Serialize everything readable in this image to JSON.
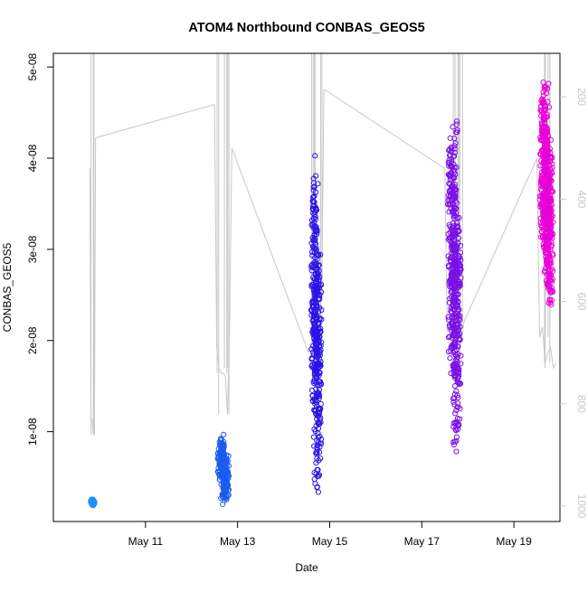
{
  "chart_data": {
    "type": "scatter",
    "title": "ATOM4 Northbound CONBAS_GEOS5",
    "xlabel": "Date",
    "ylabel": "CONBAS_GEOS5",
    "x_unit": "date",
    "xlim": [
      "2016-05-09T00:00",
      "2016-05-20T00:00"
    ],
    "ylim": [
      1.5e-10,
      5.15e-08
    ],
    "x_ticks": [
      {
        "date": "2016-05-11",
        "label": "May 11"
      },
      {
        "date": "2016-05-13",
        "label": "May 13"
      },
      {
        "date": "2016-05-15",
        "label": "May 15"
      },
      {
        "date": "2016-05-17",
        "label": "May 17"
      },
      {
        "date": "2016-05-19",
        "label": "May 19"
      }
    ],
    "y_ticks": [
      {
        "value": 1e-08,
        "label": "1e-08"
      },
      {
        "value": 2e-08,
        "label": "2e-08"
      },
      {
        "value": 3e-08,
        "label": "3e-08"
      },
      {
        "value": 4e-08,
        "label": "4e-08"
      },
      {
        "value": 5e-08,
        "label": "5e-08"
      }
    ],
    "right_axis": {
      "label": "",
      "quantity": "pressure",
      "reversed": true,
      "ylim": [
        1030,
        115
      ],
      "ticks": [
        200,
        400,
        600,
        800,
        1000
      ],
      "color": "#c8c8c8"
    },
    "grid": false,
    "legend": "none",
    "series": [
      {
        "flight": 1,
        "color": "#1e90ff",
        "date": "2016-05-09",
        "start": "2016-05-09T19:00",
        "end": "2016-05-09T22:00",
        "ymin": 1.9e-09,
        "ymax": 2.6e-09,
        "n_points": 120,
        "profile_pressures": [
          340,
          830,
          830,
          860,
          860,
          280
        ]
      },
      {
        "flight": 2,
        "color": "#1a5cf0",
        "date": "2016-05-12",
        "start": "2016-05-12T12:00",
        "end": "2016-05-12T21:00",
        "ymin": 1.9e-09,
        "ymax": 1e-08,
        "n_points": 220,
        "profile_pressures": [
          215,
          690,
          730,
          740,
          740,
          745,
          820,
          640,
          300
        ]
      },
      {
        "flight": 3,
        "color": "#2a14e6",
        "date": "2016-05-14",
        "start": "2016-05-14T13:00",
        "end": "2016-05-14T21:00",
        "ymin": 2.5e-09,
        "ymax": 4.1e-08,
        "n_points": 420,
        "profile_pressures": [
          700,
          690,
          650,
          500,
          520,
          590,
          600,
          185
        ]
      },
      {
        "flight": 4,
        "color": "#7a10e6",
        "date": "2016-05-17",
        "start": "2016-05-17T12:00",
        "end": "2016-05-17T22:00",
        "ymin": 7.5e-09,
        "ymax": 4.5e-08,
        "n_points": 520,
        "profile_pressures": [
          340,
          660,
          650,
          700,
          640,
          690,
          600,
          670,
          640
        ]
      },
      {
        "flight": 5,
        "color": "#e800d8",
        "date": "2016-05-19",
        "start": "2016-05-19T12:00",
        "end": "2016-05-19T22:00",
        "ymin": 2.3e-08,
        "ymax": 4.9e-08,
        "n_points": 560,
        "profile_pressures": [
          320,
          670,
          650,
          720,
          700,
          690,
          730,
          720
        ]
      }
    ]
  }
}
